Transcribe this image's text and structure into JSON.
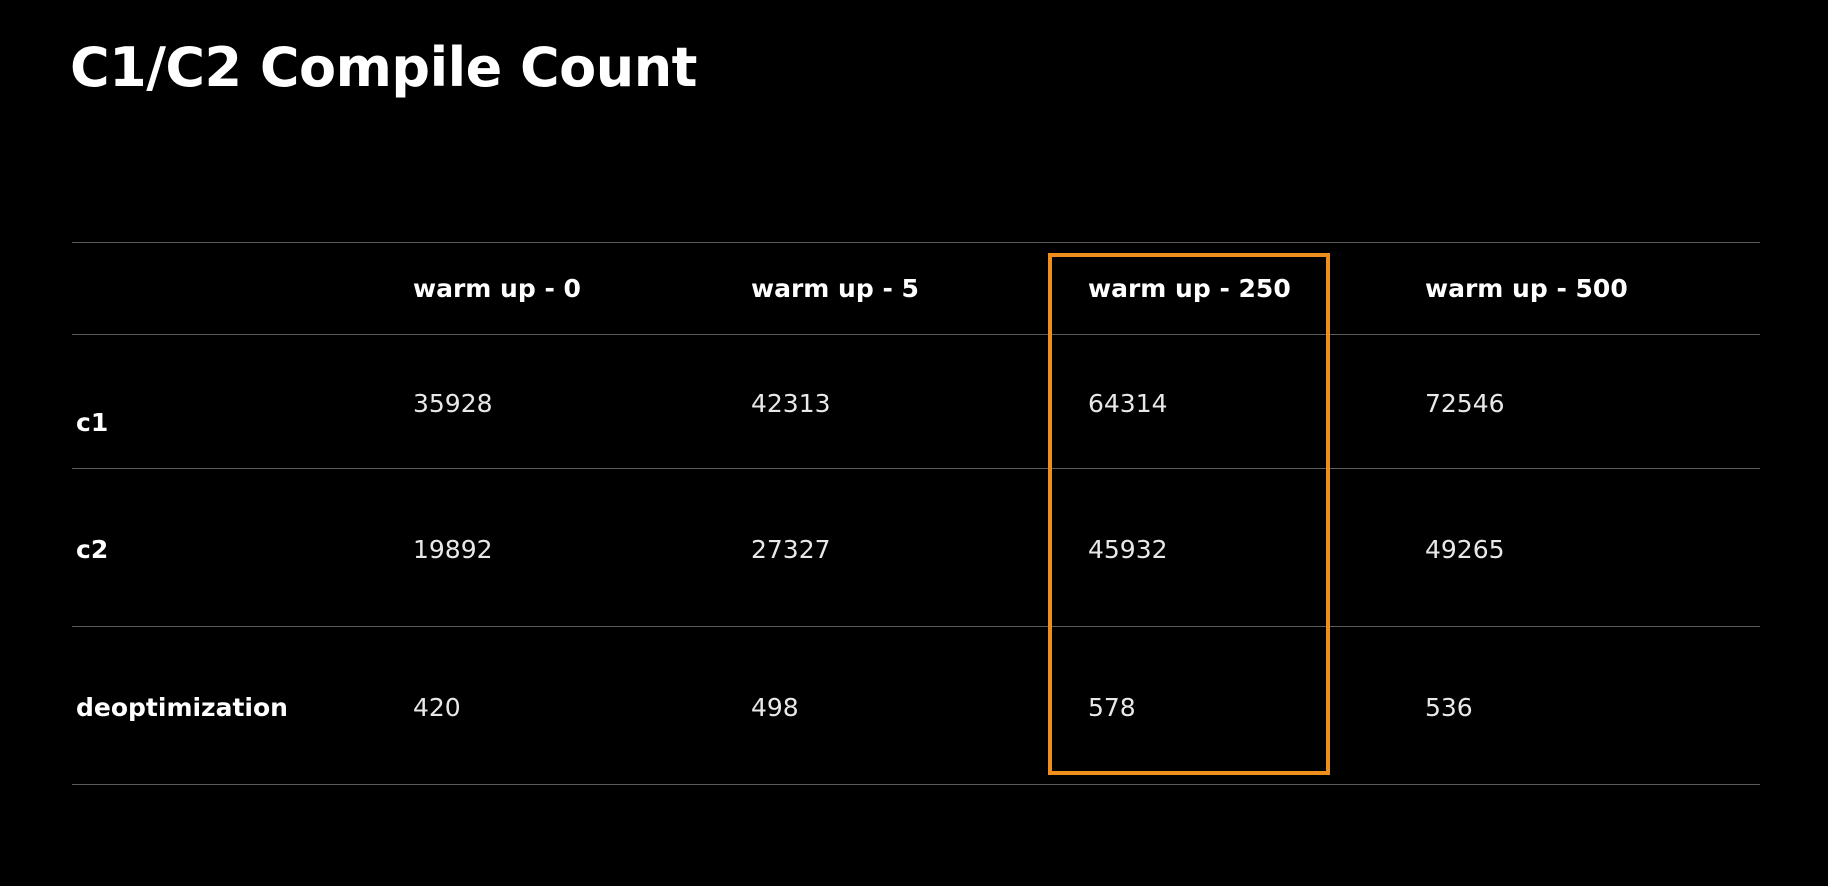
{
  "slide": {
    "title": "C1/C2 Compile Count"
  },
  "table": {
    "headers": [
      "",
      "warm up - 0",
      "warm up - 5",
      "warm up - 250",
      "warm up - 500"
    ],
    "rows": [
      {
        "label": "c1",
        "values": [
          "35928",
          "42313",
          "64314",
          "72546"
        ]
      },
      {
        "label": "c2",
        "values": [
          "19892",
          "27327",
          "45932",
          "49265"
        ]
      },
      {
        "label": "deoptimization",
        "values": [
          "420",
          "498",
          "578",
          "536"
        ]
      }
    ],
    "highlighted_column": "warm up - 250",
    "highlight_color": "#ee8f1d",
    "rule_color": "#5a5a5a",
    "background": "#000000"
  }
}
